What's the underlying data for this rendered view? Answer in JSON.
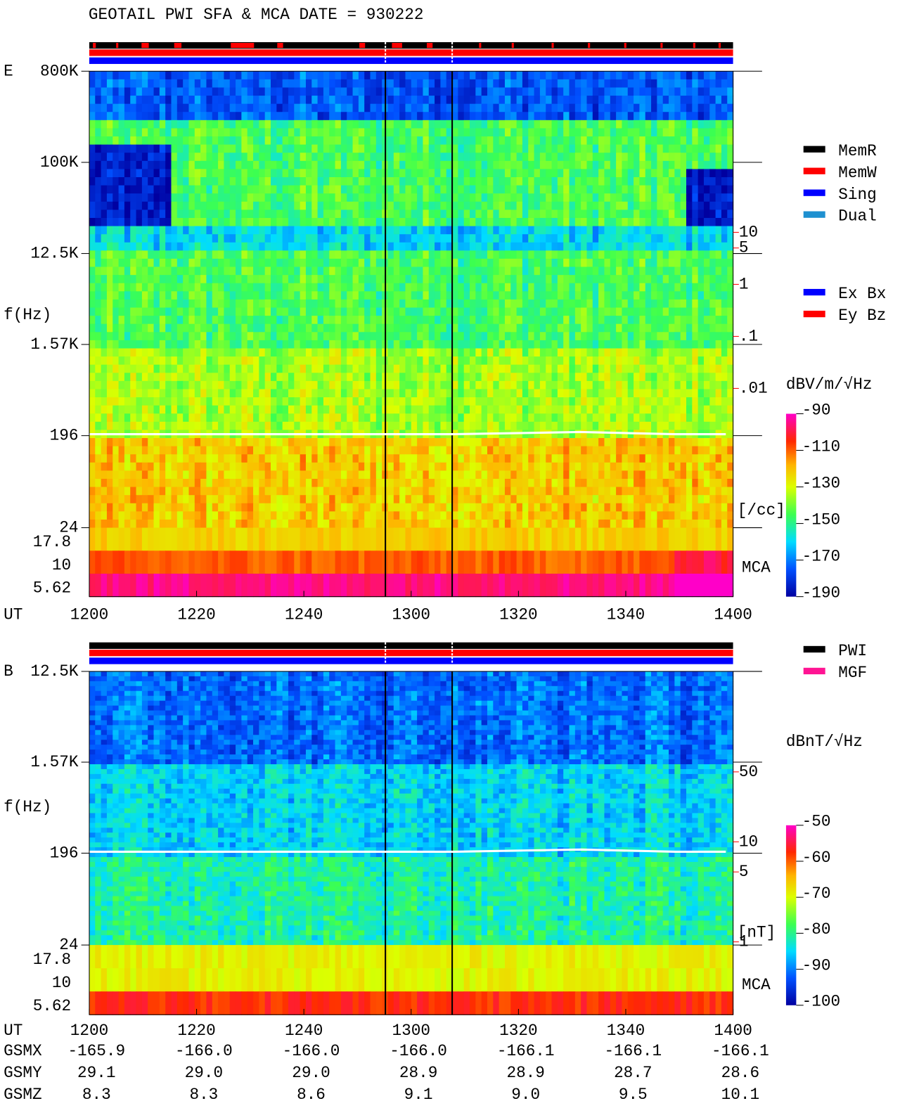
{
  "chart_data": [
    {
      "type": "spectrogram",
      "title": "GEOTAIL  PWI SFA & MCA   DATE = 930222",
      "label": "E",
      "ylabel": "f(Hz)",
      "xlabel": "UT",
      "categories": [
        "1200",
        "1220",
        "1240",
        "1300",
        "1320",
        "1340",
        "1400"
      ],
      "log_scale": true,
      "ylim": [
        24,
        800000
      ],
      "yticks": [
        {
          "value": 800000,
          "label": "800K"
        },
        {
          "value": 100000,
          "label": "100K"
        },
        {
          "value": 12500,
          "label": "12.5K"
        },
        {
          "value": 1570,
          "label": "1.57K"
        },
        196,
        24
      ],
      "mca_label": "MCA",
      "mca_channels": [
        17.8,
        10,
        5.62
      ],
      "y2lim": [
        2.1e-05,
        12500
      ],
      "y2_color": "#ff0000",
      "y2label": "[/cc]",
      "y2ticks": [
        10,
        5,
        1,
        {
          "value": 0.1,
          "label": ".1"
        },
        {
          "value": 0.01,
          "label": ".01"
        }
      ],
      "colorbar": {
        "label": "dBV/m/√Hz",
        "zlim": [
          -190,
          -90
        ],
        "zticks": [
          -90,
          -110,
          -130,
          -150,
          -170,
          -190
        ]
      },
      "legends": [
        [
          {
            "name": "MemR",
            "color": "#000000"
          },
          {
            "name": "MemW",
            "color": "#ff0000"
          },
          {
            "name": "Sing",
            "color": "#0000ff"
          },
          {
            "name": "Dual",
            "color": "#1e90d0"
          }
        ],
        [
          {
            "name": "Ex Bx",
            "color": "#0000ff"
          },
          {
            "name": "Ey Bz",
            "color": "#ff0000"
          }
        ]
      ]
    },
    {
      "type": "spectrogram",
      "label": "B",
      "ylabel": "f(Hz)",
      "xlabel": "UT",
      "categories": [
        "1200",
        "1220",
        "1240",
        "1300",
        "1320",
        "1340",
        "1400"
      ],
      "log_scale": true,
      "ylim": [
        24,
        12500
      ],
      "yticks": [
        {
          "value": 12500,
          "label": "12.5K"
        },
        {
          "value": 1570,
          "label": "1.57K"
        },
        196,
        24
      ],
      "mca_label": "MCA",
      "mca_channels": [
        17.8,
        10,
        5.62
      ],
      "y2lim": [
        0.93,
        505
      ],
      "y2_color": "#ff0000",
      "y2label": "[nT]",
      "y2ticks": [
        50,
        10,
        5,
        1
      ],
      "colorbar": {
        "label": "dBnT/√Hz",
        "zlim": [
          -100,
          -50
        ],
        "zticks": [
          -50,
          -60,
          -70,
          -80,
          -90,
          -100
        ]
      },
      "legends": [
        [
          {
            "name": "PWI",
            "color": "#000000"
          },
          {
            "name": "MGF",
            "color": "#ff1493"
          }
        ]
      ],
      "rows": [
        {
          "name": "GSMX",
          "values": [
            -165.9,
            -166.0,
            -166.0,
            -166.0,
            -166.1,
            -166.1,
            -166.1
          ],
          "value_labels": [
            "-165.9",
            "-166.0",
            "-166.0",
            "-166.0",
            "-166.1",
            "-166.1",
            "-166.1"
          ]
        },
        {
          "name": "GSMY",
          "values": [
            29.1,
            29.0,
            29.0,
            28.9,
            28.9,
            28.7,
            28.6
          ],
          "value_labels": [
            "29.1",
            "29.0",
            "29.0",
            "28.9",
            "28.9",
            "28.7",
            "28.6"
          ]
        },
        {
          "name": "GSMZ",
          "values": [
            8.3,
            8.3,
            8.6,
            9.1,
            9.0,
            9.5,
            10.1
          ],
          "value_labels": [
            "8.3",
            "8.3",
            "8.6",
            "9.1",
            "9.0",
            "9.5",
            "10.1"
          ]
        }
      ]
    }
  ]
}
